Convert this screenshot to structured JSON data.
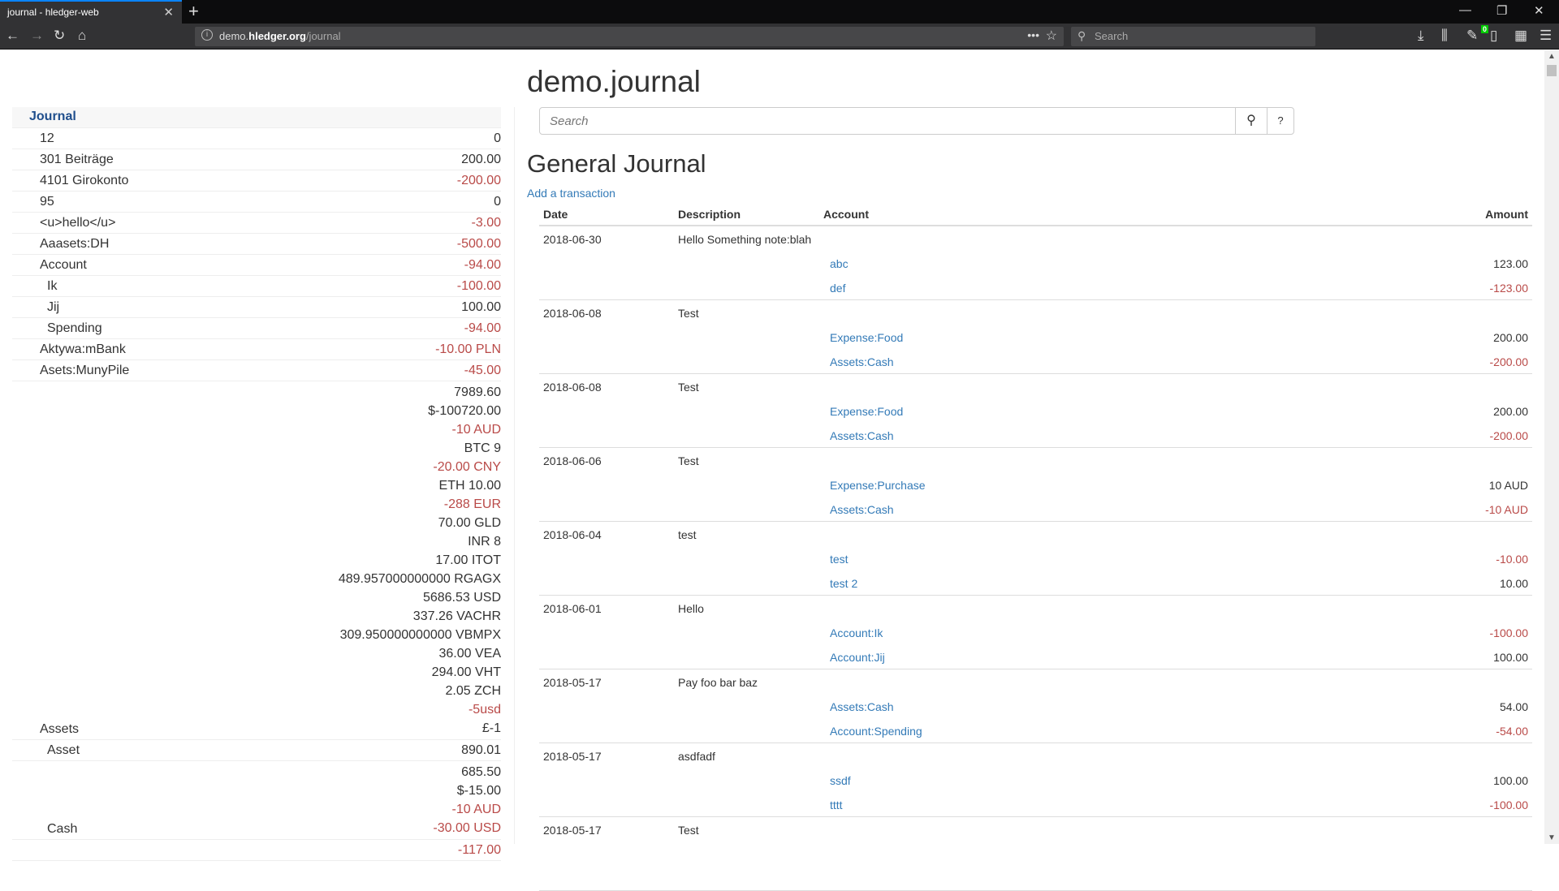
{
  "browser": {
    "tab_title": "journal - hledger-web",
    "url_prefix": "demo.",
    "url_host": "hledger.org",
    "url_path": "/journal",
    "search_placeholder": "Search",
    "extension_badge": "0"
  },
  "sidebar": {
    "heading": "Journal",
    "rows": [
      {
        "label": "12",
        "depth": 1,
        "amounts": [
          "0"
        ]
      },
      {
        "label": "301 Beiträge",
        "depth": 1,
        "amounts": [
          "200.00"
        ]
      },
      {
        "label": "4101 Girokonto",
        "depth": 1,
        "amounts": [
          "-200.00"
        ]
      },
      {
        "label": "95",
        "depth": 1,
        "amounts": [
          "0"
        ]
      },
      {
        "label": "<u>hello</u>",
        "depth": 1,
        "amounts": [
          "-3.00"
        ]
      },
      {
        "label": "Aaasets:DH",
        "depth": 1,
        "amounts": [
          "-500.00"
        ]
      },
      {
        "label": "Account",
        "depth": 1,
        "amounts": [
          "-94.00"
        ]
      },
      {
        "label": "Ik",
        "depth": 2,
        "amounts": [
          "-100.00"
        ]
      },
      {
        "label": "Jij",
        "depth": 2,
        "amounts": [
          "100.00"
        ]
      },
      {
        "label": "Spending",
        "depth": 2,
        "amounts": [
          "-94.00"
        ]
      },
      {
        "label": "Aktywa:mBank",
        "depth": 1,
        "amounts": [
          "-10.00 PLN"
        ]
      },
      {
        "label": "Asets:MunyPile",
        "depth": 1,
        "amounts": [
          "-45.00"
        ]
      },
      {
        "label": "Assets",
        "depth": 1,
        "amounts": [
          "7989.60",
          "$-100720.00",
          "-10 AUD",
          "BTC 9",
          "-20.00 CNY",
          "ETH 10.00",
          "-288 EUR",
          "70.00 GLD",
          "INR 8",
          "17.00 ITOT",
          "489.957000000000 RGAGX",
          "5686.53 USD",
          "337.26 VACHR",
          "309.950000000000 VBMPX",
          "36.00 VEA",
          "294.00 VHT",
          "2.05 ZCH",
          "-5usd",
          "£-1"
        ]
      },
      {
        "label": "Asset",
        "depth": 2,
        "amounts": [
          "890.01"
        ]
      },
      {
        "label": "Cash",
        "depth": 2,
        "amounts": [
          "685.50",
          "$-15.00",
          "-10 AUD",
          "-30.00 USD"
        ]
      },
      {
        "label": "",
        "depth": 2,
        "amounts": [
          "-117.00"
        ]
      }
    ]
  },
  "main": {
    "title": "demo.journal",
    "search_placeholder": "Search",
    "help_label": "?",
    "journal_title": "General Journal",
    "add_transaction": "Add a transaction",
    "columns": {
      "date": "Date",
      "description": "Description",
      "account": "Account",
      "amount": "Amount"
    },
    "transactions": [
      {
        "date": "2018-06-30",
        "description": "Hello Something note:blah",
        "postings": [
          {
            "account": "abc",
            "amount": "123.00"
          },
          {
            "account": "def",
            "amount": "-123.00"
          }
        ]
      },
      {
        "date": "2018-06-08",
        "description": "Test",
        "postings": [
          {
            "account": "Expense:Food",
            "amount": "200.00"
          },
          {
            "account": "Assets:Cash",
            "amount": "-200.00"
          }
        ]
      },
      {
        "date": "2018-06-08",
        "description": "Test",
        "postings": [
          {
            "account": "Expense:Food",
            "amount": "200.00"
          },
          {
            "account": "Assets:Cash",
            "amount": "-200.00"
          }
        ]
      },
      {
        "date": "2018-06-06",
        "description": "Test",
        "postings": [
          {
            "account": "Expense:Purchase",
            "amount": "10 AUD"
          },
          {
            "account": "Assets:Cash",
            "amount": "-10 AUD"
          }
        ]
      },
      {
        "date": "2018-06-04",
        "description": "test",
        "postings": [
          {
            "account": "test",
            "amount": "-10.00"
          },
          {
            "account": "test 2",
            "amount": "10.00"
          }
        ]
      },
      {
        "date": "2018-06-01",
        "description": "Hello",
        "postings": [
          {
            "account": "Account:Ik",
            "amount": "-100.00"
          },
          {
            "account": "Account:Jij",
            "amount": "100.00"
          }
        ]
      },
      {
        "date": "2018-05-17",
        "description": "Pay foo bar baz",
        "postings": [
          {
            "account": "Assets:Cash",
            "amount": "54.00"
          },
          {
            "account": "Account:Spending",
            "amount": "-54.00"
          }
        ]
      },
      {
        "date": "2018-05-17",
        "description": "asdfadf",
        "postings": [
          {
            "account": "ssdf",
            "amount": "100.00"
          },
          {
            "account": "tttt",
            "amount": "-100.00"
          }
        ]
      },
      {
        "date": "2018-05-17",
        "description": "Test",
        "postings": []
      }
    ]
  },
  "colors": {
    "link": "#337ab7",
    "negative": "#b94a48",
    "heading": "#1f4e8c",
    "tab_accent": "#0a84ff"
  }
}
